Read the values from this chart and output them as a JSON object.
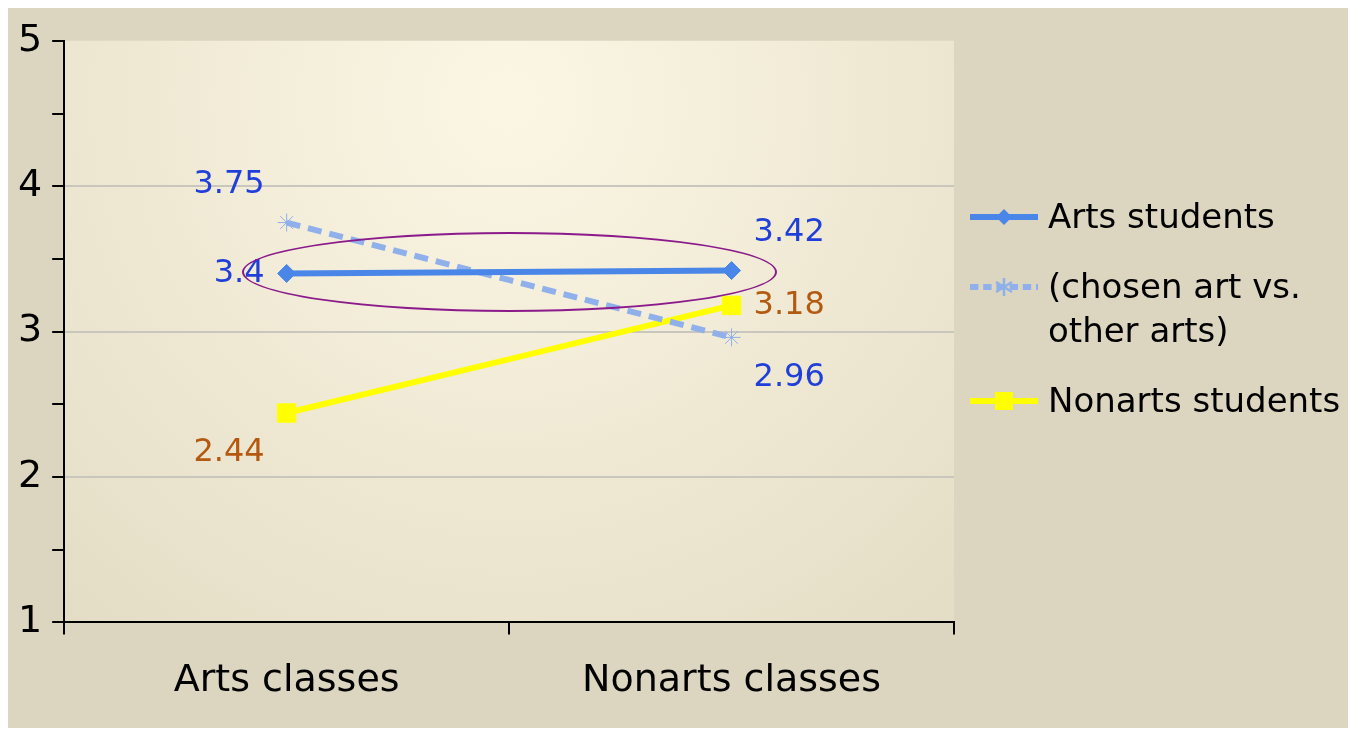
{
  "chart_data": {
    "type": "line",
    "categories": [
      "Arts classes",
      "Nonarts classes"
    ],
    "series": [
      {
        "name": "Arts students",
        "color": "#4a86e8",
        "values": [
          3.4,
          3.42
        ],
        "marker": "diamond",
        "line_style": "solid"
      },
      {
        "name": "(chosen art vs. other arts)",
        "color": "#8fb0ea",
        "values": [
          3.75,
          2.96
        ],
        "marker": "cross",
        "line_style": "dashed"
      },
      {
        "name": "Nonarts students",
        "color": "#ffff00",
        "values": [
          2.44,
          3.18
        ],
        "marker": "square",
        "line_style": "solid"
      }
    ],
    "ylim": [
      1,
      5
    ],
    "yticks": [
      1,
      {
        "value": 1.5,
        "label": null
      },
      2,
      {
        "value": 2.5,
        "label": null
      },
      3,
      {
        "value": 3.5,
        "label": null
      },
      4,
      {
        "value": 4.5,
        "label": null
      },
      5
    ],
    "grid": "y",
    "legend": "right",
    "data_labels": true
  }
}
